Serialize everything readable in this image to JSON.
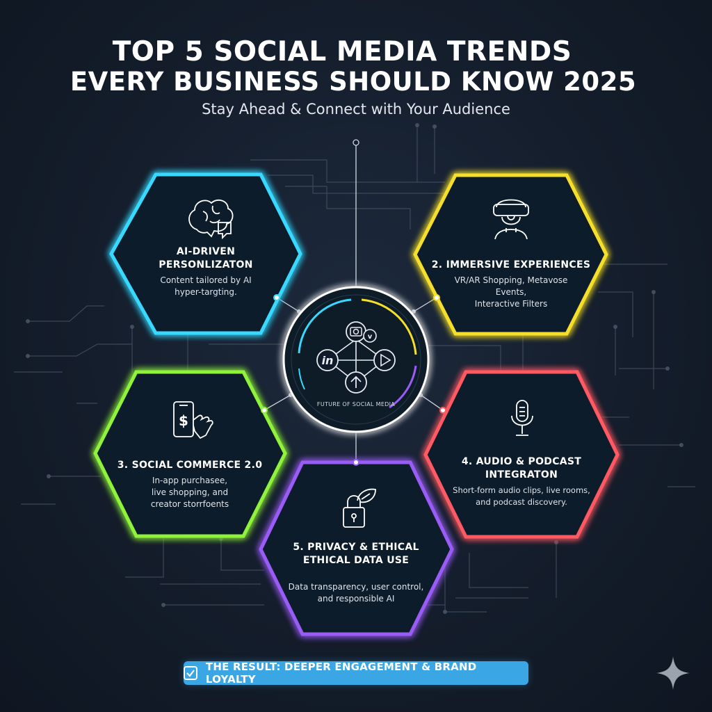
{
  "header": {
    "title_line1": "TOP 5 SOCIAL MEDIA TRENDS",
    "title_line2": "EVERY BUSINESS SHOULD KNOW 2025",
    "subtitle": "Stay Ahead & Connect with Your Audience"
  },
  "hub": {
    "label": "FUTURE OF SOCIAL MEDIA",
    "icons": [
      "camera-icon",
      "vimeo-icon",
      "linkedin-icon",
      "play-icon",
      "upload-icon"
    ]
  },
  "trends": [
    {
      "title": "AI-DRIVEN\nPERSONLIZATON",
      "description": "Content tailored by AI\nhyper-targting.",
      "icon": "brain-chat-icon",
      "color": "#38d8ff"
    },
    {
      "title": "2. IMMERSIVE EXPERIENCES",
      "description": "VR/AR Shopping, Metavose\nEvents,\nInteractive Filters",
      "icon": "vr-headset-icon",
      "color": "#f5df2a"
    },
    {
      "title": "3. SOCIAL COMMERCE 2.0",
      "description": "In-app purchasee,\nlive shopping, and\ncreator storrfoents",
      "icon": "phone-dollar-icon",
      "color": "#8ff23a"
    },
    {
      "title": "4. AUDIO & PODCAST\nINTEGRATON",
      "description": "Short-form audio clips, live rooms,\nand podcast discovery.",
      "icon": "microphone-icon",
      "color": "#ff5a63"
    },
    {
      "title": "5. PRIVACY & ETHICAL\nETHICAL DATA USE",
      "description": "Data transparency, user control,\nand responsible AI",
      "icon": "lock-leaf-icon",
      "color": "#9a5cf6"
    }
  ],
  "result": {
    "text": "THE RESULT: DEEPER ENGAGEMENT & BRAND LOYALTY",
    "icon": "checkbox-icon"
  }
}
